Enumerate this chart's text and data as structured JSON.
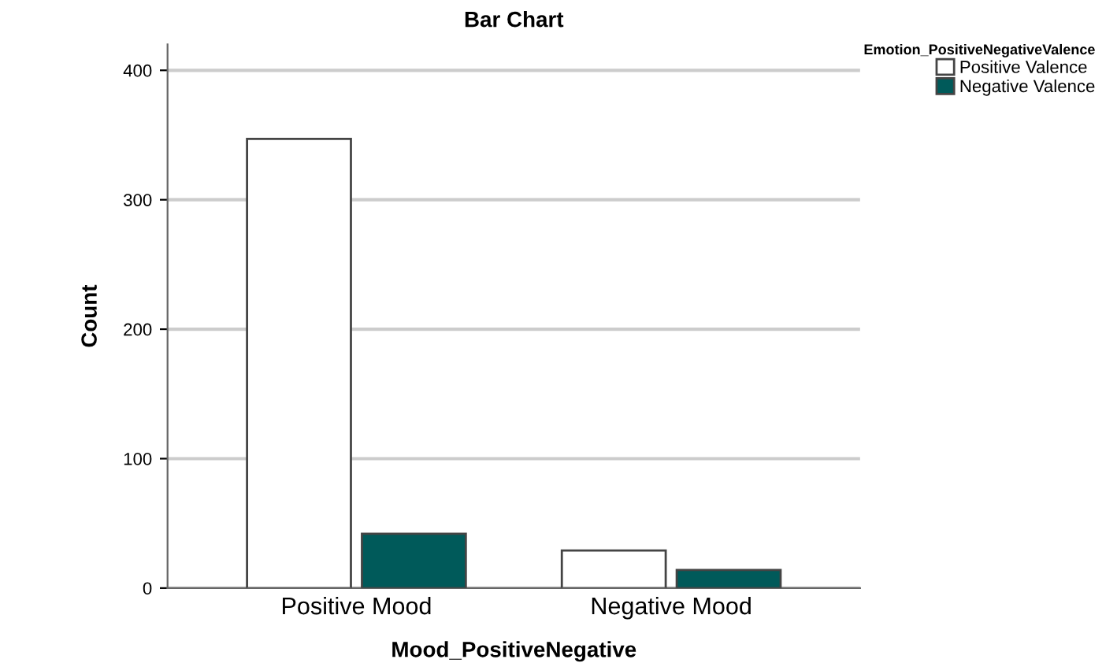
{
  "chart_data": {
    "type": "bar",
    "title": "Bar Chart",
    "xlabel": "Mood_PositiveNegative",
    "ylabel": "Count",
    "legend_title": "Emotion_PositiveNegativeValence",
    "categories": [
      "Positive Mood",
      "Negative Mood"
    ],
    "series": [
      {
        "name": "Positive Valence",
        "color": "#ffffff",
        "values": [
          347,
          29
        ]
      },
      {
        "name": "Negative Valence",
        "color": "#005a5a",
        "values": [
          42,
          14
        ]
      }
    ],
    "ylim": [
      0,
      420
    ],
    "yticks": [
      0,
      100,
      200,
      300,
      400
    ],
    "grid": "y",
    "legend": "top right"
  }
}
